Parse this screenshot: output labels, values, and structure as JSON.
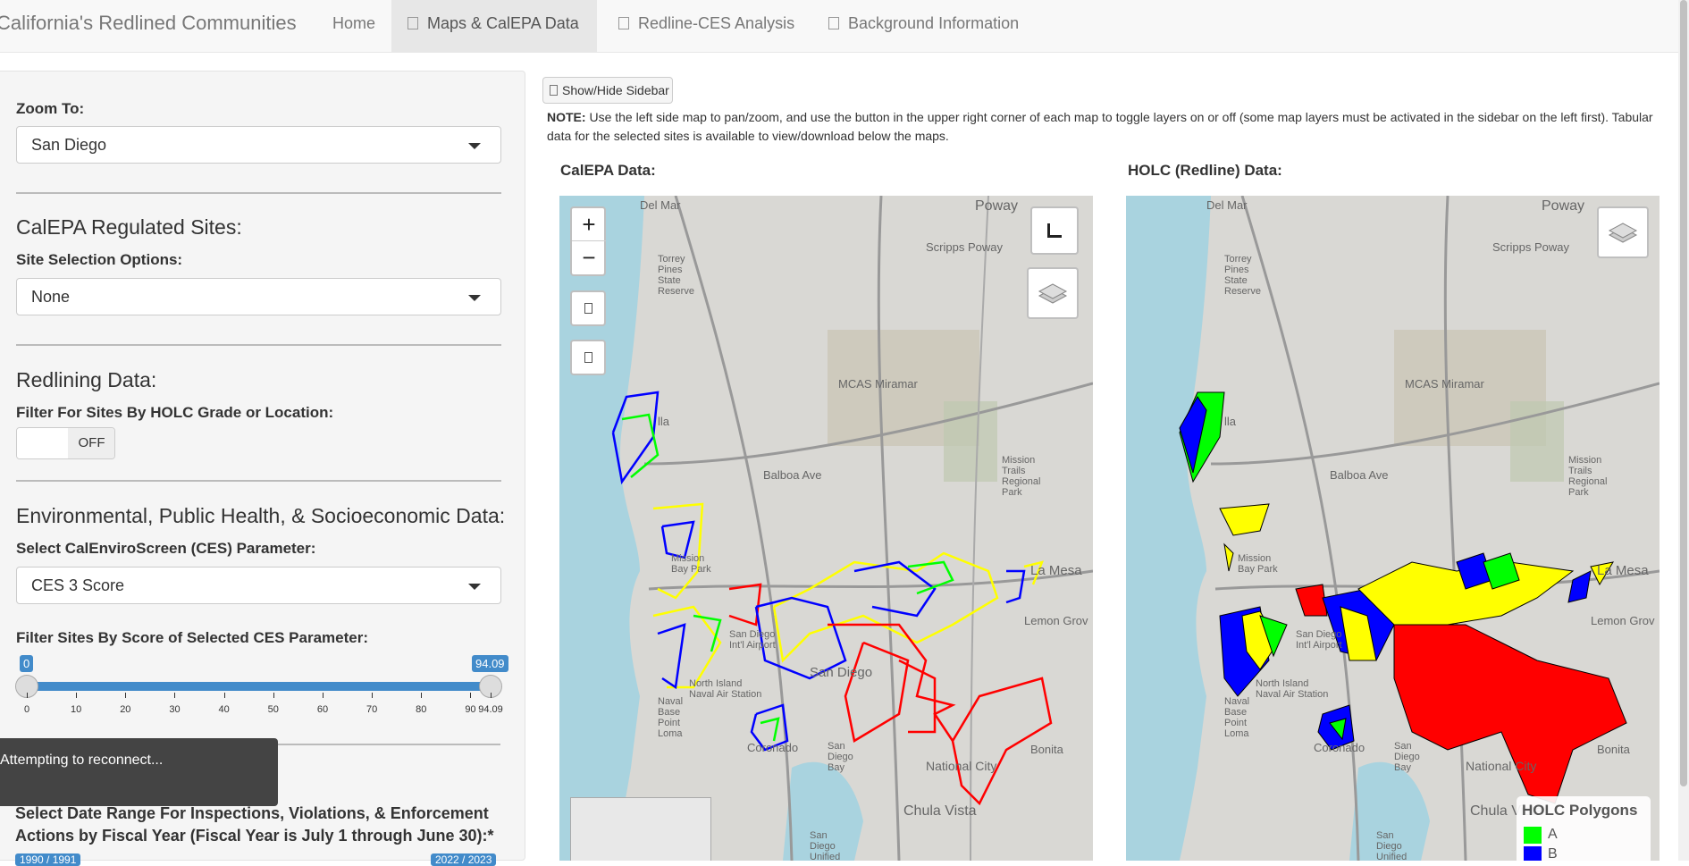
{
  "navbar": {
    "brand": "California's Redlined Communities",
    "tabs": [
      {
        "label": "Home",
        "icon": ""
      },
      {
        "label": "Maps & CalEPA Data",
        "icon": "file-icon"
      },
      {
        "label": "Redline-CES Analysis",
        "icon": "file-icon"
      },
      {
        "label": "Background Information",
        "icon": "file-icon"
      }
    ],
    "active_tab": 1
  },
  "sidebar": {
    "zoom_label": "Zoom To:",
    "zoom_value": "San Diego",
    "calepa_heading": "CalEPA Regulated Sites:",
    "site_selection_label": "Site Selection Options:",
    "site_selection_value": "None",
    "redlining_heading": "Redlining Data:",
    "holc_filter_label": "Filter For Sites By HOLC Grade or Location:",
    "holc_toggle_state": "OFF",
    "env_heading": "Environmental, Public Health, & Socioeconomic Data:",
    "ces_param_label": "Select CalEnviroScreen (CES) Parameter:",
    "ces_param_value": "CES 3 Score",
    "score_filter_label": "Filter Sites By Score of Selected CES Parameter:",
    "slider": {
      "min": 0,
      "max": 94.09,
      "from_label": "0",
      "to_label": "94.09",
      "ticks": [
        "0",
        "10",
        "20",
        "30",
        "40",
        "50",
        "60",
        "70",
        "80",
        "90",
        "94.09"
      ]
    },
    "date_range_label": "Select Date Range For Inspections, Violations, & Enforcement Actions by Fiscal Year (Fiscal Year is July 1 through June 30):*",
    "date_from": "1990 / 1991",
    "date_to": "2022 / 2023",
    "toast": "Attempting to reconnect..."
  },
  "main": {
    "show_hide_label": "Show/Hide Sidebar",
    "note_bold": "NOTE:",
    "note_text": " Use the left side map to pan/zoom, and use the button in the upper right corner of each map to toggle layers on or off (some map layers must be activated in the sidebar on the left first). Tabular data for the selected sites is available to view/download below the maps.",
    "left_map_title": "CalEPA Data:",
    "right_map_title": "HOLC (Redline) Data:",
    "zoom_in": "+",
    "zoom_out": "−",
    "legend": {
      "title": "HOLC Polygons",
      "items": [
        {
          "label": "A",
          "color": "#00ff00"
        },
        {
          "label": "B",
          "color": "#0000ff"
        }
      ]
    },
    "map_labels": {
      "del_mar": "Del Mar",
      "poway": "Poway",
      "scripps_poway": "Scripps Poway",
      "torrey_pines": "Torrey Pines State Reserve",
      "mcas": "MCAS Miramar",
      "la_jolla": "lla",
      "balboa": "Balboa Ave",
      "mission_trails": "Mission Trails Regional Park",
      "mission_bay": "Mission Bay Park",
      "la_mesa": "La Mesa",
      "lemon_grove": "Lemon Grov",
      "sd_airport": "San Diego Int'l Airport",
      "san_diego": "San Diego",
      "north_island": "North Island Naval Air Station",
      "naval_base": "Naval Base Point Loma",
      "coronado": "Coronado",
      "sd_bay": "San Diego Bay",
      "national_city": "National City",
      "bonita": "Bonita",
      "chula_vista": "Chula Vista",
      "sd_unified": "San Diego Unified"
    }
  },
  "colors": {
    "holc_a": "#00ff00",
    "holc_b": "#0000ff",
    "holc_c": "#ffff00",
    "holc_d": "#ff0000",
    "accent": "#428bca"
  }
}
